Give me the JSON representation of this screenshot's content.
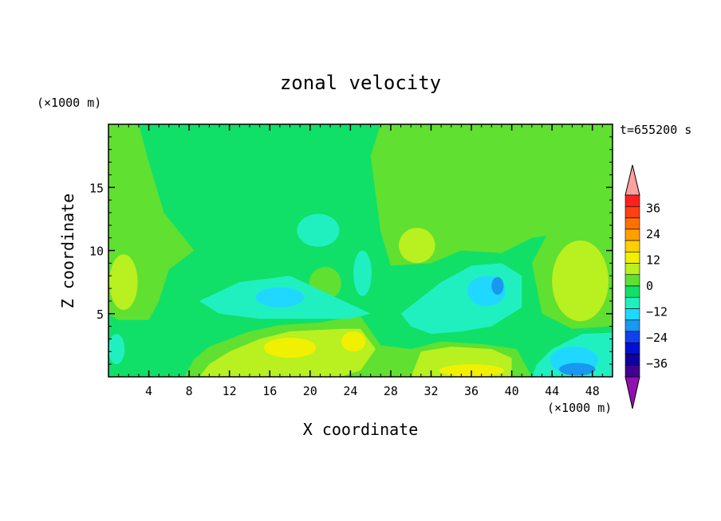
{
  "chart_data": {
    "type": "heatmap",
    "title": "zonal velocity",
    "xlabel": "X coordinate",
    "ylabel": "Z coordinate",
    "x_unit": "(×1000 m)",
    "y_unit": "(×1000 m)",
    "time_label": "t=655200 s",
    "xlim": [
      0,
      50
    ],
    "ylim": [
      0,
      20
    ],
    "x_ticks": [
      4,
      8,
      12,
      16,
      20,
      24,
      28,
      32,
      36,
      40,
      44,
      48
    ],
    "y_ticks": [
      5,
      10,
      15
    ],
    "grid": false,
    "colorbar": {
      "labels": [
        36,
        24,
        12,
        0,
        -12,
        -24,
        -36
      ],
      "levels": [
        42,
        36,
        30,
        24,
        18,
        12,
        6,
        0,
        -6,
        -12,
        -18,
        -24,
        -30,
        -36,
        -42
      ],
      "colors": [
        "#ff2020",
        "#ff4010",
        "#ff7000",
        "#ffa000",
        "#ffd000",
        "#f0f000",
        "#b8f020",
        "#60e030",
        "#10e068",
        "#20f0c0",
        "#20d8ff",
        "#1898f0",
        "#1040f0",
        "#0010d0",
        "#1000a0",
        "#400090"
      ],
      "extend_max_color": "#ffa0a0",
      "extend_min_color": "#9010b0"
    },
    "field_description_features": [
      {
        "kind": "positive",
        "x": 18,
        "z": 2.2,
        "value": 10
      },
      {
        "kind": "positive",
        "x": 24,
        "z": 2.8,
        "value": 10
      },
      {
        "kind": "positive",
        "x": 36,
        "z": 1.2,
        "value": 12
      },
      {
        "kind": "positive",
        "x": 47,
        "z": 7.5,
        "value": 6
      },
      {
        "kind": "negative",
        "x": 38,
        "z": 7,
        "value": -16
      },
      {
        "kind": "negative",
        "x": 46,
        "z": 0.8,
        "value": -18
      },
      {
        "kind": "negative",
        "x": 17,
        "z": 6.3,
        "value": -8
      },
      {
        "kind": "negative",
        "x": 21,
        "z": 11.5,
        "value": -6
      }
    ]
  }
}
